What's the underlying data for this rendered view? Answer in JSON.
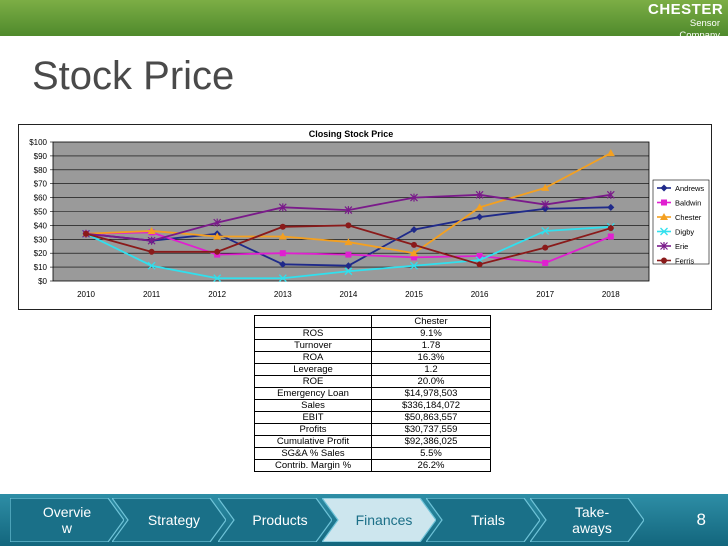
{
  "brand": {
    "name": "CHESTER",
    "tagline": "Sensor Company"
  },
  "page": {
    "title": "Stock Price",
    "number": "8"
  },
  "colors": {
    "topbar": "#5f9a35",
    "navbar": "#1b7a93",
    "chart_bg": "#9a9a9a"
  },
  "chart_data": {
    "type": "line",
    "title": "Closing Stock Price",
    "x": [
      "2010",
      "2011",
      "2012",
      "2013",
      "2014",
      "2015",
      "2016",
      "2017",
      "2018"
    ],
    "ylim": [
      0,
      100
    ],
    "yticks": [
      "$100",
      "$90",
      "$80",
      "$70",
      "$60",
      "$50",
      "$40",
      "$30",
      "$20",
      "$10",
      "$0"
    ],
    "grid": true,
    "legend": "right",
    "series": [
      {
        "name": "Andrews",
        "color": "#1f2a8a",
        "marker": "diamond",
        "values": [
          34,
          29,
          34,
          12,
          11,
          37,
          46,
          52,
          53
        ]
      },
      {
        "name": "Baldwin",
        "color": "#e020d0",
        "marker": "square",
        "values": [
          34,
          35,
          19,
          20,
          19,
          17,
          18,
          13,
          32
        ]
      },
      {
        "name": "Chester",
        "color": "#f4a020",
        "marker": "triangle",
        "values": [
          34,
          36,
          32,
          32,
          28,
          20,
          53,
          67,
          92
        ]
      },
      {
        "name": "Digby",
        "color": "#30e0ee",
        "marker": "x",
        "values": [
          34,
          11,
          2,
          2,
          7,
          11,
          15,
          36,
          39
        ]
      },
      {
        "name": "Erie",
        "color": "#7a1a8a",
        "marker": "star",
        "values": [
          34,
          29,
          42,
          53,
          51,
          60,
          62,
          55,
          62
        ]
      },
      {
        "name": "Ferris",
        "color": "#8a1a1a",
        "marker": "circle",
        "values": [
          34,
          21,
          21,
          39,
          40,
          26,
          12,
          24,
          38
        ]
      }
    ]
  },
  "financials": {
    "header": "Chester",
    "rows": [
      {
        "label": "ROS",
        "value": "9.1%"
      },
      {
        "label": "Turnover",
        "value": "1.78"
      },
      {
        "label": "ROA",
        "value": "16.3%"
      },
      {
        "label": "Leverage",
        "value": "1.2"
      },
      {
        "label": "ROE",
        "value": "20.0%"
      },
      {
        "label": "Emergency Loan",
        "value": "$14,978,503"
      },
      {
        "label": "Sales",
        "value": "$336,184,072"
      },
      {
        "label": "EBIT",
        "value": "$50,863,557"
      },
      {
        "label": "Profits",
        "value": "$30,737,559"
      },
      {
        "label": "Cumulative Profit",
        "value": "$92,386,025"
      },
      {
        "label": "SG&A % Sales",
        "value": "5.5%"
      },
      {
        "label": "Contrib. Margin %",
        "value": "26.2%"
      }
    ]
  },
  "nav": {
    "steps": [
      {
        "label": "Overvie\nw",
        "active": false
      },
      {
        "label": "Strategy",
        "active": false
      },
      {
        "label": "Products",
        "active": false
      },
      {
        "label": "Finances",
        "active": true
      },
      {
        "label": "Trials",
        "active": false
      },
      {
        "label": "Take-\naways",
        "active": false
      }
    ]
  }
}
